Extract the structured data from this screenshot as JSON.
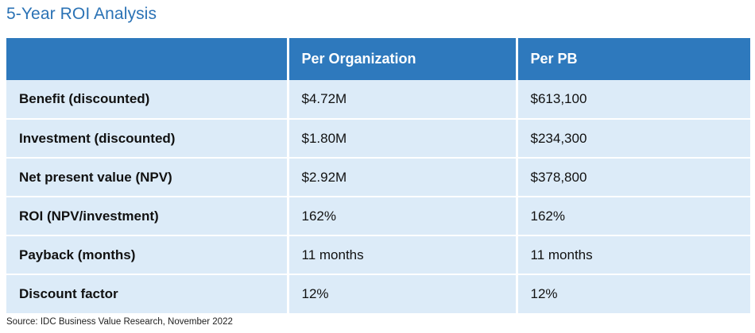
{
  "title": "5-Year ROI Analysis",
  "table": {
    "headers": [
      "",
      "Per Organization",
      "Per PB"
    ],
    "rows": [
      {
        "label": "Benefit (discounted)",
        "per_org": "$4.72M",
        "per_pb": "$613,100"
      },
      {
        "label": "Investment (discounted)",
        "per_org": "$1.80M",
        "per_pb": "$234,300"
      },
      {
        "label": "Net present value (NPV)",
        "per_org": "$2.92M",
        "per_pb": "$378,800"
      },
      {
        "label": "ROI (NPV/investment)",
        "per_org": "162%",
        "per_pb": "162%"
      },
      {
        "label": "Payback (months)",
        "per_org": "11 months",
        "per_pb": "11 months"
      },
      {
        "label": "Discount factor",
        "per_org": "12%",
        "per_pb": "12%"
      }
    ]
  },
  "source": "Source: IDC Business Value Research, November 2022",
  "colors": {
    "title": "#2a72b5",
    "header_bg": "#2e79bd",
    "cell_bg": "#dcebf8"
  }
}
